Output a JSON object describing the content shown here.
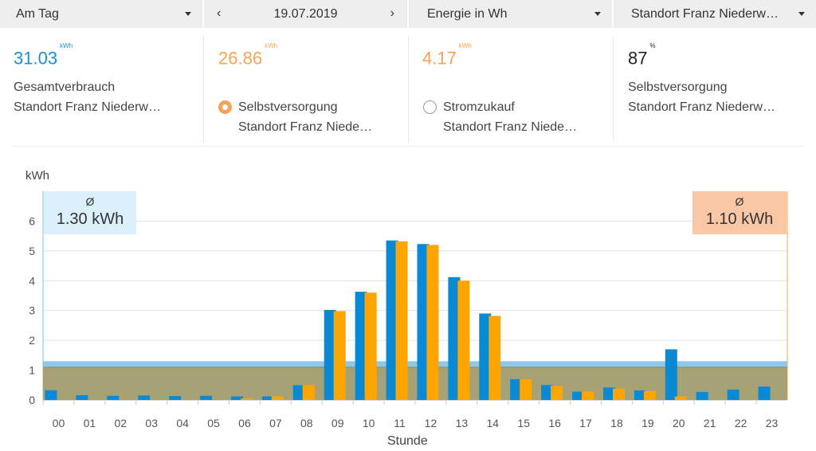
{
  "toolbar": {
    "period": "Am Tag",
    "date": "19.07.2019",
    "prev_icon": "chevron-left-icon",
    "next_icon": "chevron-right-icon",
    "unit": "Energie in Wh",
    "location": "Standort Franz Niederw…"
  },
  "summary": [
    {
      "value": "31.03",
      "unit": "kWh",
      "line1": "Gesamtverbrauch",
      "line2": "Standort Franz Niederw…",
      "color": "#1a8fd6",
      "radio": "none"
    },
    {
      "value": "26.86",
      "unit": "kWh",
      "line1": "Selbstversorgung",
      "line2": "Standort Franz Niede…",
      "color": "#f5a35a",
      "radio": "selected"
    },
    {
      "value": "4.17",
      "unit": "kWh",
      "line1": "Stromzukauf",
      "line2": "Standort Franz Niede…",
      "color": "#f5a35a",
      "radio": "unselected"
    },
    {
      "value": "87",
      "unit": "%",
      "line1": "Selbstversorgung",
      "line2": "Standort Franz Niederw…",
      "color": "#222222",
      "radio": "none"
    }
  ],
  "chart_data": {
    "type": "bar",
    "ylabel": "kWh",
    "xlabel": "Stunde",
    "ylim": [
      0,
      7
    ],
    "yticks": [
      "0",
      "1",
      "2",
      "3",
      "4",
      "5",
      "6"
    ],
    "categories": [
      "00",
      "01",
      "02",
      "03",
      "04",
      "05",
      "06",
      "07",
      "08",
      "09",
      "10",
      "11",
      "12",
      "13",
      "14",
      "15",
      "16",
      "17",
      "18",
      "19",
      "20",
      "21",
      "22",
      "23"
    ],
    "series": [
      {
        "color": "#0a8ad4",
        "values": [
          0.33,
          0.16,
          0.14,
          0.15,
          0.13,
          0.14,
          0.12,
          0.12,
          0.5,
          3.02,
          3.63,
          5.35,
          5.23,
          4.12,
          2.9,
          0.7,
          0.5,
          0.28,
          0.42,
          0.32,
          1.7,
          0.27,
          0.35,
          0.45
        ]
      },
      {
        "color": "#ffa500",
        "values": [
          0,
          0,
          0,
          0,
          0,
          0,
          0.05,
          0.12,
          0.5,
          2.98,
          3.6,
          5.32,
          5.2,
          4.0,
          2.82,
          0.7,
          0.48,
          0.28,
          0.38,
          0.3,
          0.12,
          0,
          0,
          0
        ]
      }
    ],
    "averages": [
      {
        "symbol": "Ø",
        "label": "1.30 kWh",
        "value": 1.3,
        "color": "#7ec2ea",
        "box_color": "#dbf0fb"
      },
      {
        "symbol": "Ø",
        "label": "1.10 kWh",
        "value": 1.1,
        "color": "#a8a070",
        "box_color": "#f9c7a6"
      }
    ],
    "grid": true
  }
}
